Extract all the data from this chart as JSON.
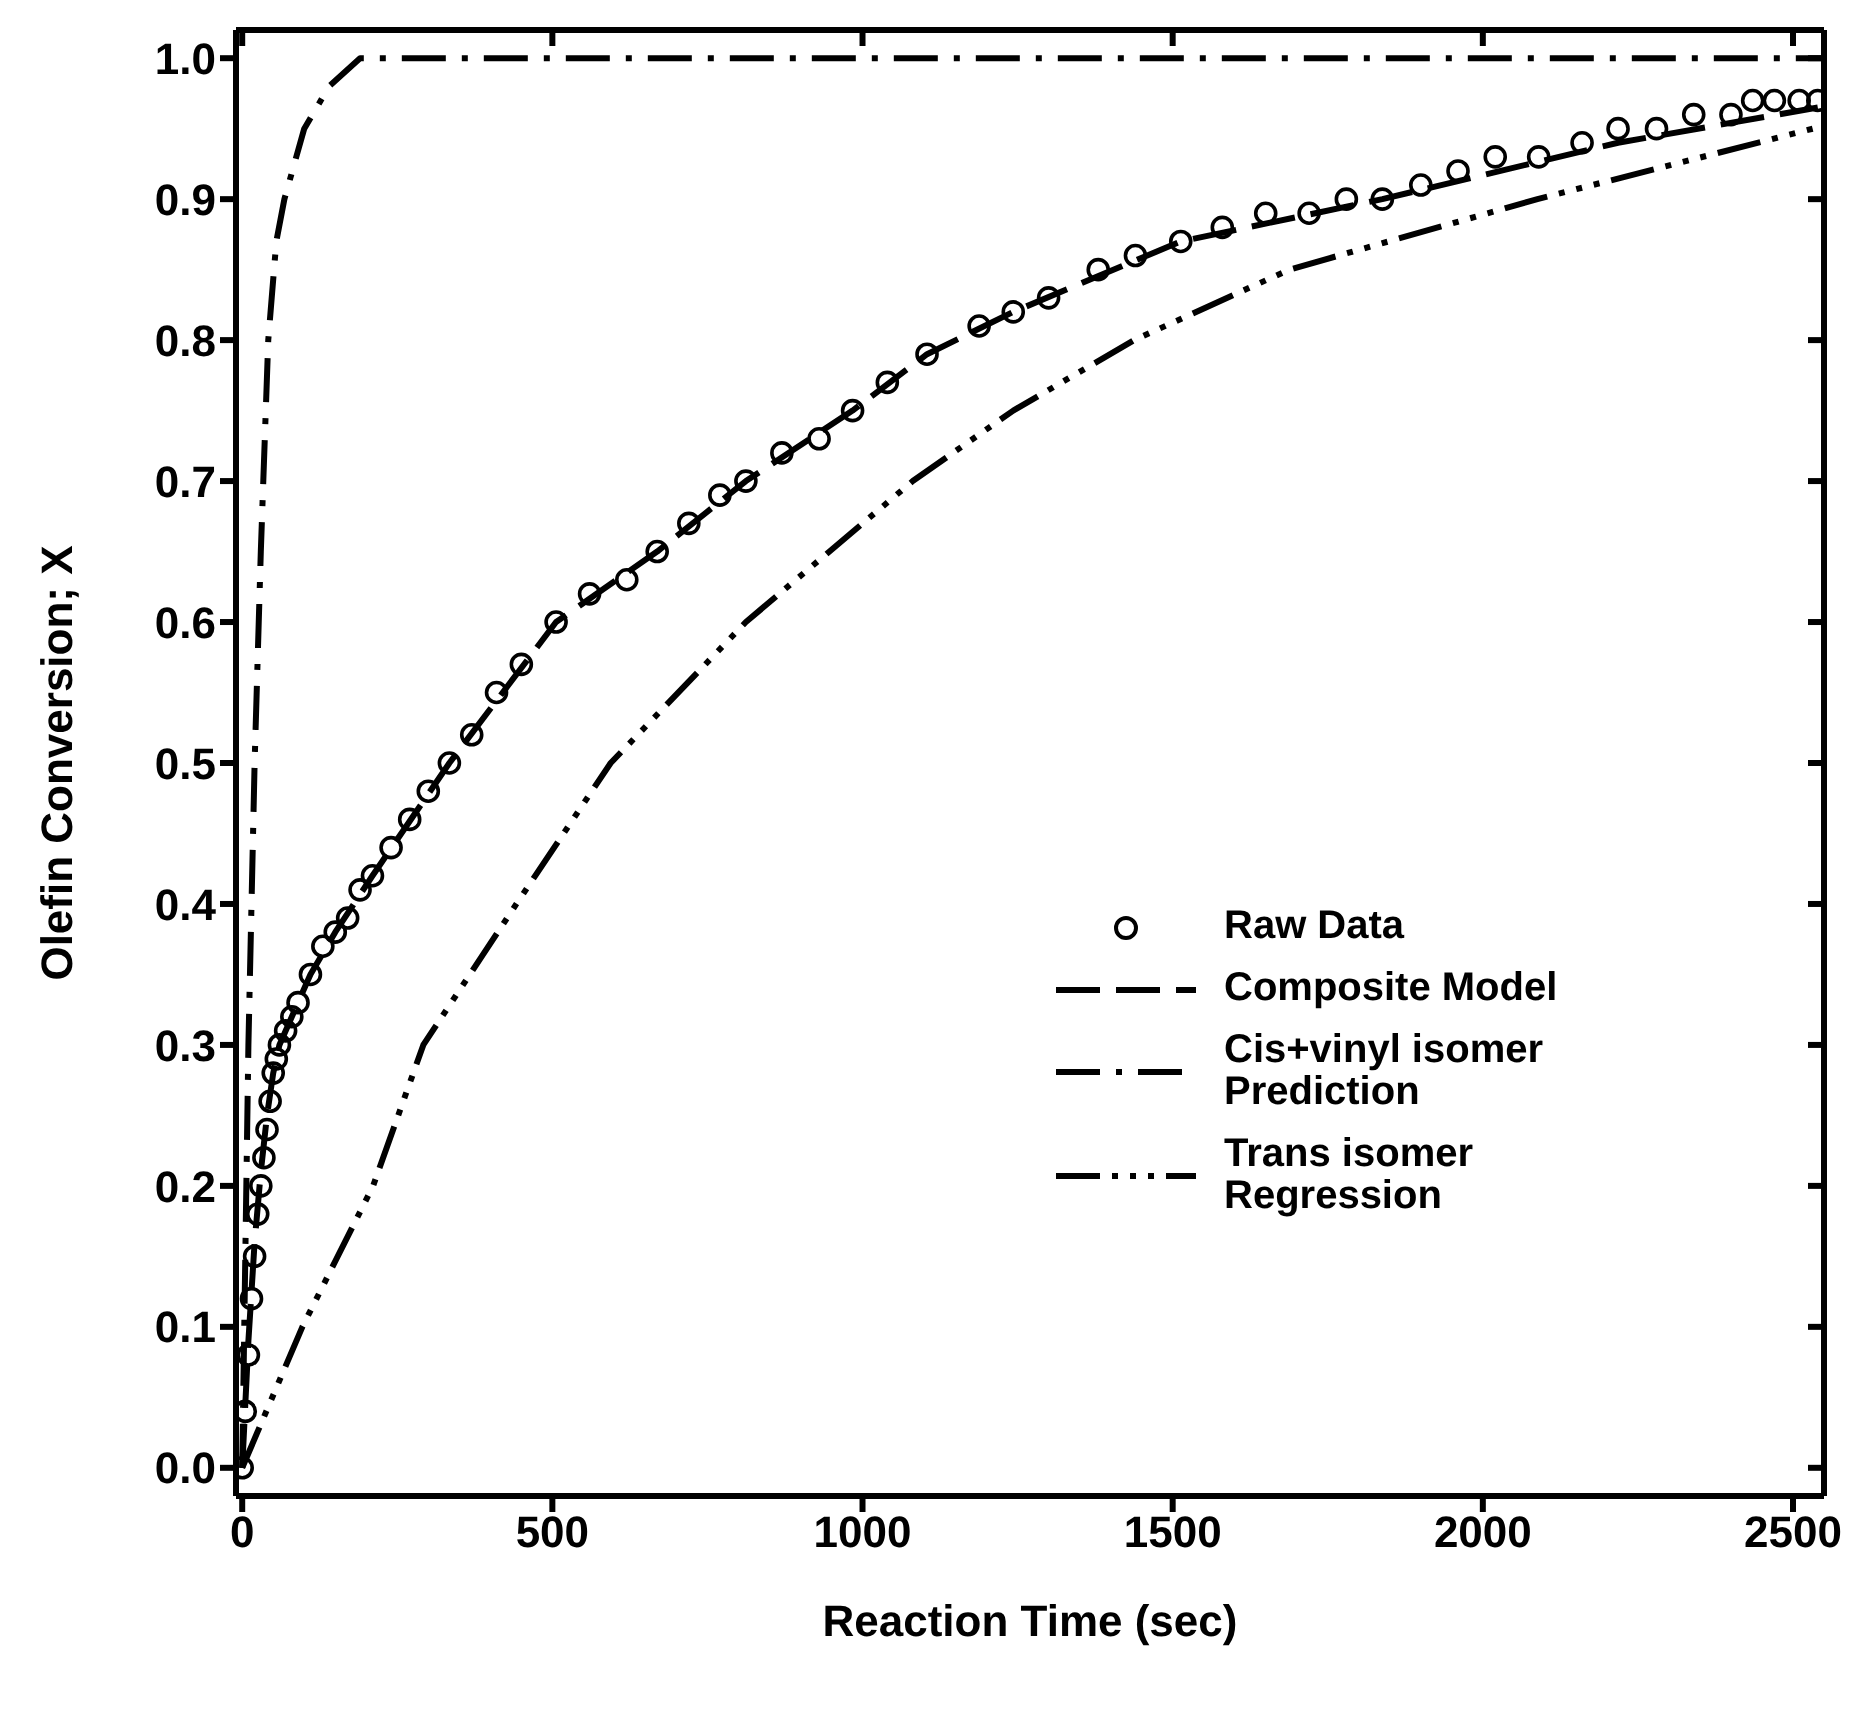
{
  "chart_data": {
    "type": "scatter",
    "xlabel": "Reaction Time (sec)",
    "ylabel": "Olefin Conversion; X",
    "xlim": [
      -10,
      2550
    ],
    "ylim": [
      -0.02,
      1.02
    ],
    "xticks": [
      0,
      500,
      1000,
      1500,
      2000,
      2500
    ],
    "yticks": [
      {
        "value": 0,
        "label": "0.0"
      },
      0.1,
      0.2,
      0.3,
      0.4,
      0.5,
      0.6,
      0.7,
      0.8,
      0.9,
      {
        "value": 1,
        "label": "1.0"
      }
    ],
    "legend": "bottom right",
    "series": [
      {
        "name": "Raw Data",
        "marker": "circle",
        "color": "#000000",
        "x": [
          0,
          5,
          10,
          15,
          20,
          25,
          30,
          35,
          40,
          45,
          50,
          55,
          60,
          70,
          80,
          90,
          110,
          130,
          150,
          170,
          190,
          210,
          240,
          270,
          300,
          334,
          370,
          410,
          450,
          506,
          560,
          620,
          669,
          720,
          770,
          812,
          870,
          930,
          984,
          1040,
          1104,
          1188,
          1243,
          1300,
          1380,
          1440,
          1513,
          1580,
          1650,
          1720,
          1780,
          1838,
          1900,
          1960,
          2020,
          2090,
          2160,
          2218,
          2280,
          2340,
          2400,
          2435,
          2470,
          2510,
          2540
        ],
        "values": [
          0,
          0.04,
          0.08,
          0.12,
          0.15,
          0.18,
          0.2,
          0.22,
          0.24,
          0.26,
          0.28,
          0.29,
          0.3,
          0.31,
          0.32,
          0.33,
          0.35,
          0.37,
          0.38,
          0.39,
          0.41,
          0.42,
          0.44,
          0.46,
          0.48,
          0.5,
          0.52,
          0.55,
          0.57,
          0.6,
          0.62,
          0.63,
          0.65,
          0.67,
          0.69,
          0.7,
          0.72,
          0.73,
          0.75,
          0.77,
          0.79,
          0.81,
          0.82,
          0.83,
          0.85,
          0.86,
          0.87,
          0.88,
          0.89,
          0.89,
          0.9,
          0.9,
          0.91,
          0.92,
          0.93,
          0.93,
          0.94,
          0.95,
          0.95,
          0.96,
          0.96,
          0.97,
          0.97,
          0.97,
          0.97
        ]
      },
      {
        "name": "Composite Model",
        "type": "line",
        "line_style": "dashed",
        "color": "#000000",
        "x": [
          0,
          10,
          20,
          30,
          40,
          50,
          60,
          80,
          110,
          150,
          210,
          334,
          506,
          669,
          812,
          984,
          1104,
          1243,
          1513,
          1838,
          2218,
          2540
        ],
        "values": [
          0,
          0.09,
          0.16,
          0.21,
          0.25,
          0.28,
          0.3,
          0.32,
          0.35,
          0.38,
          0.42,
          0.5,
          0.6,
          0.65,
          0.7,
          0.75,
          0.79,
          0.82,
          0.87,
          0.9,
          0.94,
          0.965
        ]
      },
      {
        "name": "Cis+vinyl isomer Prediction",
        "type": "line",
        "line_style": "dashdot",
        "color": "#000000",
        "x": [
          0,
          10,
          20,
          30,
          42,
          55,
          68,
          100,
          140,
          190,
          2550
        ],
        "values": [
          0,
          0.3,
          0.5,
          0.65,
          0.8,
          0.87,
          0.9,
          0.95,
          0.98,
          1.0,
          1.0
        ]
      },
      {
        "name": "Trans isomer Regression",
        "type": "line",
        "line_style": "dashdotdot",
        "color": "#000000",
        "x": [
          0,
          97,
          211,
          292,
          367,
          442,
          594,
          812,
          1081,
          1243,
          1438,
          1688,
          2088,
          2532
        ],
        "values": [
          0,
          0.1,
          0.2,
          0.3,
          0.35,
          0.4,
          0.5,
          0.6,
          0.7,
          0.75,
          0.8,
          0.85,
          0.9,
          0.95
        ]
      }
    ]
  }
}
